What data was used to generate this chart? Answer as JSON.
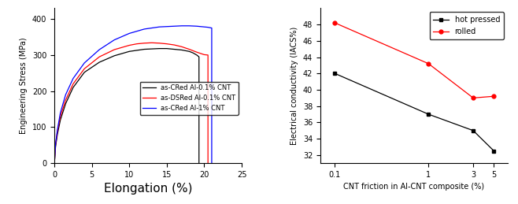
{
  "left": {
    "xlabel": "Elongation (%)",
    "ylabel": "Engineering Stress (MPa)",
    "xlim": [
      0,
      25
    ],
    "ylim": [
      0,
      430
    ],
    "xticks": [
      0,
      5,
      10,
      15,
      20,
      25
    ],
    "yticks": [
      0,
      100,
      200,
      300,
      400
    ],
    "legend": [
      "as-CRed Al-0.1% CNT",
      "as-DSRed Al-0.1% CNT",
      "as-CRed Al-1% CNT"
    ],
    "colors": [
      "black",
      "red",
      "blue"
    ],
    "curves": {
      "black": {
        "x": [
          0,
          0.15,
          0.4,
          0.8,
          1.5,
          2.5,
          4,
          6,
          8,
          10,
          12,
          13,
          14,
          15,
          16,
          17,
          18,
          18.5,
          19,
          19.3,
          19.3
        ],
        "y": [
          0,
          45,
          80,
          120,
          165,
          210,
          252,
          280,
          298,
          310,
          316,
          317,
          318,
          318,
          316,
          314,
          310,
          306,
          300,
          295,
          0
        ]
      },
      "red": {
        "x": [
          0,
          0.15,
          0.4,
          0.8,
          1.5,
          2.5,
          4,
          6,
          8,
          10,
          11,
          12,
          13,
          14,
          15,
          16,
          17,
          18,
          19,
          20,
          20.5,
          20.5
        ],
        "y": [
          0,
          50,
          88,
          130,
          175,
          220,
          262,
          295,
          315,
          327,
          331,
          333,
          334,
          333,
          331,
          328,
          323,
          316,
          308,
          301,
          300,
          0
        ]
      },
      "blue": {
        "x": [
          0,
          0.15,
          0.4,
          0.8,
          1.5,
          2.5,
          4,
          6,
          8,
          10,
          12,
          14,
          16,
          17,
          18,
          19,
          20,
          20.5,
          21,
          21.0
        ],
        "y": [
          0,
          52,
          92,
          140,
          190,
          235,
          278,
          315,
          342,
          360,
          372,
          378,
          380,
          381,
          381,
          380,
          378,
          377,
          375,
          0
        ]
      }
    }
  },
  "right": {
    "xlabel": "CNT friction in Al-CNT composite (%)",
    "ylabel": "Electrical conductivity (IACS%)",
    "xlim_log": [
      0.07,
      7
    ],
    "ylim": [
      31,
      50
    ],
    "yticks": [
      32,
      34,
      36,
      38,
      40,
      42,
      44,
      46,
      48
    ],
    "xtick_labels": [
      "0.1",
      "1",
      "3",
      "5"
    ],
    "xtick_vals": [
      0.1,
      1,
      3,
      5
    ],
    "hot_pressed": {
      "x": [
        0.1,
        1,
        3,
        5
      ],
      "y": [
        42.0,
        37.0,
        35.0,
        32.5
      ],
      "color": "black",
      "marker": "s",
      "label": "hot pressed"
    },
    "rolled": {
      "x": [
        0.1,
        1,
        3,
        5
      ],
      "y": [
        48.2,
        43.2,
        39.0,
        39.2
      ],
      "color": "red",
      "marker": "o",
      "label": "rolled"
    }
  }
}
